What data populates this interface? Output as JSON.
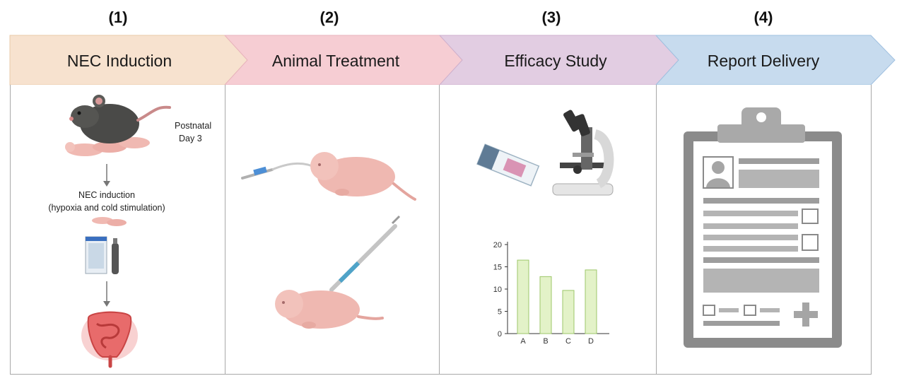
{
  "steps": [
    {
      "number": "(1)",
      "title": "NEC Induction",
      "color": "#f7e2cf"
    },
    {
      "number": "(2)",
      "title": "Animal Treatment",
      "color": "#f6cdd3"
    },
    {
      "number": "(3)",
      "title": "Efficacy Study",
      "color": "#e2cde2"
    },
    {
      "number": "(4)",
      "title": "Report Delivery",
      "color": "#c7dbee"
    }
  ],
  "panel1": {
    "postnatal_line1": "Postnatal",
    "postnatal_line2": "Day 3",
    "nec_line1": "NEC induction",
    "nec_line2": "(hypoxia and cold stimulation)"
  },
  "chart_data": {
    "type": "bar",
    "categories": [
      "A",
      "B",
      "C",
      "D"
    ],
    "values": [
      16.5,
      12.8,
      9.7,
      14.3
    ],
    "yticks": [
      0,
      5,
      10,
      15,
      20
    ],
    "ylim": [
      0,
      20
    ],
    "bar_color": "#e3f2c8",
    "bar_edge": "#9cc76a"
  }
}
